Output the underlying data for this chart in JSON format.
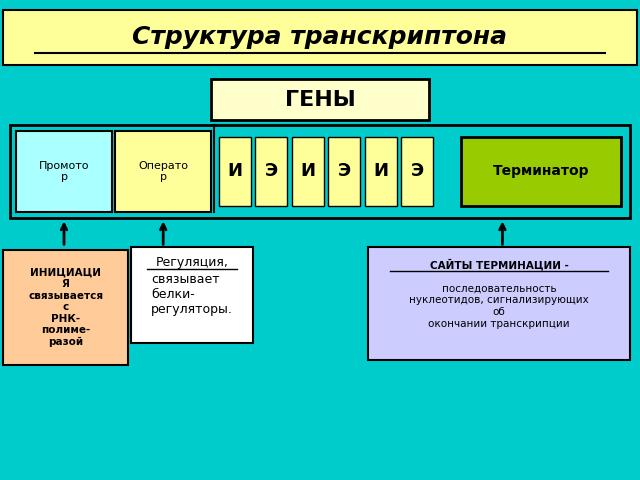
{
  "title": "Структура транскриптона",
  "background_color": "#00CCCC",
  "title_bg": "#FFFF99",
  "genes_label": "ГЕНЫ",
  "genes_box_color": "#FFFFCC",
  "promoter_label": "Промото\nр",
  "promoter_color": "#AAFFFF",
  "operator_label": "Операто\nр",
  "operator_color": "#FFFF99",
  "ie_labels": [
    "И",
    "Э",
    "И",
    "Э",
    "И",
    "Э"
  ],
  "ie_color": "#FFFF99",
  "terminator_label": "Терминатор",
  "terminator_color": "#99CC00",
  "initiation_label": "ИНИЦИАЦИ\nЯ\nсвязывается\nс\nРНК-\nполиме-\nразой",
  "initiation_color": "#FFCC99",
  "regulation_label": "Регуляция,\nсвязывает\nбелки-\nрегуляторы.",
  "regulation_color": "#FFFFFF",
  "termination_label": "САЙТЫ ТЕРМИНАЦИИ -\nпоследовательность\nнуклеотидов, сигнализирующих\nоб\nокончании транскрипции",
  "termination_color": "#CCCCFF"
}
